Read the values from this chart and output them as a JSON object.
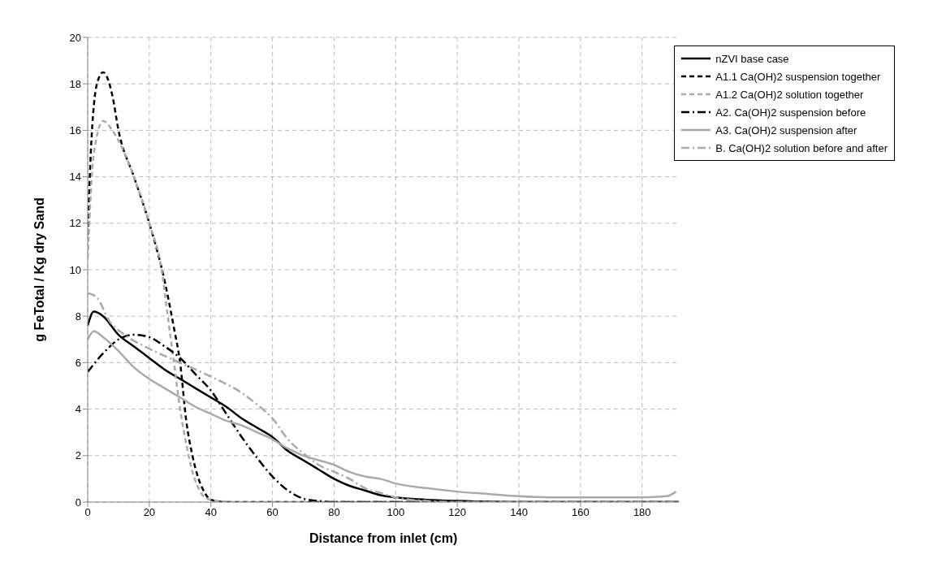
{
  "chart_data": {
    "type": "line",
    "xlabel": "Distance from inlet (cm)",
    "ylabel": "g FeTotal / Kg dry Sand",
    "xlim": [
      0,
      192
    ],
    "xticks": [
      0,
      20,
      40,
      60,
      80,
      100,
      120,
      140,
      160,
      180
    ],
    "ylim": [
      0,
      20
    ],
    "yticks": [
      0,
      2,
      4,
      6,
      8,
      10,
      12,
      14,
      16,
      18,
      20
    ],
    "grid": true,
    "legend": "top right",
    "marker": "none",
    "series": [
      {
        "name": "nZVI base case",
        "color": "#000000",
        "line_style": "solid",
        "x": [
          0,
          2,
          5,
          10,
          15,
          20,
          25,
          30,
          35,
          40,
          45,
          50,
          55,
          60,
          65,
          70,
          75,
          80,
          85,
          90,
          95,
          100,
          110,
          120,
          140,
          192
        ],
        "values": [
          7.6,
          8.2,
          8.0,
          7.2,
          6.7,
          6.2,
          5.7,
          5.3,
          4.9,
          4.5,
          4.1,
          3.6,
          3.2,
          2.8,
          2.2,
          1.8,
          1.4,
          1.0,
          0.7,
          0.5,
          0.3,
          0.2,
          0.1,
          0.05,
          0,
          0
        ]
      },
      {
        "name": "A1.1 Ca(OH)2 suspension together",
        "color": "#000000",
        "line_style": "dashed",
        "x": [
          0,
          1,
          3,
          5,
          8,
          10,
          15,
          20,
          25,
          28,
          30,
          32,
          34,
          36,
          38,
          40,
          45,
          192
        ],
        "values": [
          11.5,
          15,
          18,
          18.5,
          17.5,
          16,
          14,
          12,
          9.5,
          7.5,
          6,
          3.5,
          2,
          1,
          0.4,
          0.1,
          0,
          0
        ]
      },
      {
        "name": "A1.2 Ca(OH)2 solution together",
        "color": "#aaaaaa",
        "line_style": "dashed",
        "x": [
          0,
          2,
          5,
          8,
          12,
          15,
          20,
          24,
          26,
          28,
          30,
          32,
          34,
          36,
          38,
          42,
          50,
          192
        ],
        "values": [
          10.5,
          15,
          16.4,
          16,
          15,
          14,
          12,
          10,
          8,
          6,
          4,
          2.5,
          1.3,
          0.6,
          0.2,
          0.05,
          0,
          0
        ]
      },
      {
        "name": "A2. Ca(OH)2 suspension before",
        "color": "#000000",
        "line_style": "dashdot",
        "x": [
          0,
          5,
          10,
          15,
          20,
          25,
          30,
          35,
          40,
          45,
          50,
          55,
          60,
          65,
          70,
          75,
          80,
          192
        ],
        "values": [
          5.6,
          6.4,
          7.0,
          7.2,
          7.1,
          6.7,
          6.2,
          5.5,
          4.8,
          3.8,
          2.8,
          1.9,
          1.1,
          0.5,
          0.15,
          0.05,
          0,
          0
        ]
      },
      {
        "name": "A3. Ca(OH)2 suspension after",
        "color": "#aaaaaa",
        "line_style": "solid",
        "x": [
          0,
          2,
          5,
          10,
          15,
          20,
          25,
          30,
          35,
          40,
          45,
          50,
          55,
          60,
          65,
          70,
          75,
          80,
          85,
          90,
          95,
          100,
          110,
          120,
          130,
          140,
          150,
          160,
          170,
          180,
          188,
          191
        ],
        "values": [
          7.0,
          7.35,
          7.1,
          6.5,
          5.8,
          5.3,
          4.9,
          4.5,
          4.1,
          3.8,
          3.5,
          3.3,
          3.0,
          2.7,
          2.3,
          2.0,
          1.8,
          1.6,
          1.3,
          1.1,
          1.0,
          0.8,
          0.6,
          0.45,
          0.35,
          0.25,
          0.2,
          0.2,
          0.2,
          0.2,
          0.25,
          0.45
        ]
      },
      {
        "name": "B. Ca(OH)2 solution before and after",
        "color": "#aaaaaa",
        "line_style": "dashdot",
        "x": [
          0,
          3,
          7,
          12,
          20,
          30,
          40,
          50,
          55,
          60,
          65,
          70,
          75,
          80,
          85,
          90,
          95,
          100,
          105,
          110,
          120,
          192
        ],
        "values": [
          9.0,
          8.8,
          7.8,
          7.2,
          6.6,
          6.0,
          5.4,
          4.7,
          4.2,
          3.6,
          2.7,
          2.1,
          1.6,
          1.3,
          1.0,
          0.6,
          0.4,
          0.2,
          0.1,
          0.05,
          0,
          0
        ]
      }
    ]
  }
}
